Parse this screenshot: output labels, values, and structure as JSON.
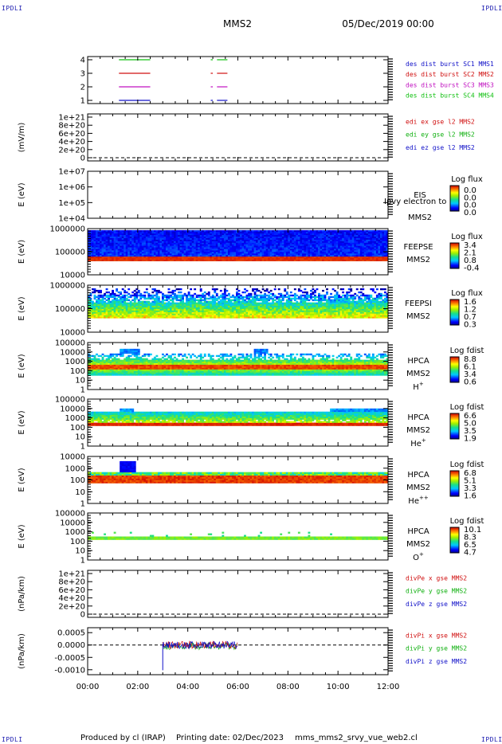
{
  "header": {
    "spacecraft": "MMS2",
    "date": "05/Dec/2019 00:00",
    "corner_left_top": "IPDLI",
    "corner_right_top": "IPDLI",
    "corner_left_bottom": "IPDLI",
    "corner_right_bottom": "IPDLI"
  },
  "footer": {
    "produced_by": "Produced by cl (IRAP)",
    "printing_date": "Printing date: 02/Dec/2023",
    "filename": "mms_mms2_srvy_vue_web2.cl"
  },
  "chart_data": [
    {
      "id": "burst",
      "type": "line",
      "ylabel": "",
      "ticks": [
        "1",
        "2",
        "3",
        "4"
      ],
      "series": [
        {
          "name": "des dist burst SC1 MMS1",
          "color": "#1010c8",
          "level": 1,
          "intervals": [
            [
              "01:15",
              "02:30"
            ],
            [
              "04:55",
              "05:00"
            ],
            [
              "05:10",
              "05:35"
            ]
          ]
        },
        {
          "name": "des dist burst SC2 MMS2",
          "color": "#d01010",
          "level": 3,
          "intervals": [
            [
              "01:15",
              "02:30"
            ],
            [
              "04:55",
              "05:00"
            ],
            [
              "05:10",
              "05:35"
            ]
          ]
        },
        {
          "name": "des dist burst SC3 MMS3",
          "color": "#c010c0",
          "level": 2,
          "intervals": [
            [
              "01:15",
              "02:30"
            ],
            [
              "04:55",
              "05:00"
            ],
            [
              "05:10",
              "05:35"
            ]
          ]
        },
        {
          "name": "des dist burst SC4 MMS4",
          "color": "#10c010",
          "level": 4,
          "intervals": [
            [
              "01:15",
              "02:30"
            ],
            [
              "04:55",
              "05:00"
            ],
            [
              "05:10",
              "05:35"
            ]
          ]
        }
      ]
    },
    {
      "id": "edi",
      "type": "line",
      "ylabel": "(mV/m)",
      "ticks": [
        "0",
        "2e+20",
        "4e+20",
        "6e+20",
        "8e+20",
        "1e+21"
      ],
      "series": [
        {
          "name": "edi ex gse l2 MMS2",
          "color": "#d01010"
        },
        {
          "name": "edi ey gse l2 MMS2",
          "color": "#10b010"
        },
        {
          "name": "edi ez gse l2 MMS2",
          "color": "#1010c8"
        }
      ]
    },
    {
      "id": "eis",
      "type": "heatmap",
      "ylabel": "E (eV)",
      "ticks": [
        "1e+04",
        "1e+05",
        "1e+06",
        "1e+07"
      ],
      "instrument": "EIS",
      "overlay_label": "Ipvy electron to",
      "sc": "MMS2",
      "species": "",
      "colorbar_title": "Log flux",
      "colorbar_ticks": [
        "0.0",
        "0.0",
        "0.0",
        "0.0"
      ]
    },
    {
      "id": "feeps_e",
      "type": "heatmap",
      "ylabel": "E (eV)",
      "ticks": [
        "10000",
        "100000",
        "1000000"
      ],
      "instrument": "FEEPSE",
      "sc": "MMS2",
      "species": "",
      "colorbar_title": "Log flux",
      "colorbar_ticks": [
        "3.4",
        "2.1",
        "0.8",
        "-0.4"
      ]
    },
    {
      "id": "feeps_i",
      "type": "heatmap",
      "ylabel": "E (eV)",
      "ticks": [
        "10000",
        "100000",
        "1000000"
      ],
      "instrument": "FEEPSI",
      "sc": "MMS2",
      "species": "",
      "colorbar_title": "Log flux",
      "colorbar_ticks": [
        "1.6",
        "1.2",
        "0.7",
        "0.3"
      ]
    },
    {
      "id": "hpca_h",
      "type": "heatmap",
      "ylabel": "E (eV)",
      "ticks": [
        "1",
        "10",
        "100",
        "1000",
        "10000",
        "100000"
      ],
      "instrument": "HPCA",
      "sc": "MMS2",
      "species": "H",
      "species_sup": "+",
      "colorbar_title": "Log fdist",
      "colorbar_ticks": [
        "8.8",
        "6.1",
        "3.4",
        "0.6"
      ]
    },
    {
      "id": "hpca_he",
      "type": "heatmap",
      "ylabel": "E (eV)",
      "ticks": [
        "1",
        "10",
        "100",
        "1000",
        "10000",
        "100000"
      ],
      "instrument": "HPCA",
      "sc": "MMS2",
      "species": "He",
      "species_sup": "+",
      "colorbar_title": "Log fdist",
      "colorbar_ticks": [
        "6.6",
        "5.0",
        "3.5",
        "1.9"
      ]
    },
    {
      "id": "hpca_hepp",
      "type": "heatmap",
      "ylabel": "E (eV)",
      "ticks": [
        "1",
        "10",
        "100",
        "1000",
        "10000"
      ],
      "instrument": "HPCA",
      "sc": "MMS2",
      "species": "He",
      "species_sup": "++",
      "colorbar_title": "Log fdist",
      "colorbar_ticks": [
        "6.8",
        "5.1",
        "3.3",
        "1.6"
      ]
    },
    {
      "id": "hpca_o",
      "type": "heatmap",
      "ylabel": "E (eV)",
      "ticks": [
        "1",
        "10",
        "100",
        "1000",
        "10000",
        "100000"
      ],
      "instrument": "HPCA",
      "sc": "MMS2",
      "species": "O",
      "species_sup": "+",
      "colorbar_title": "Log fdist",
      "colorbar_ticks": [
        "10.1",
        "8.3",
        "6.5",
        "4.7"
      ]
    },
    {
      "id": "divpe",
      "type": "line",
      "ylabel": "(nPa/km)",
      "ticks": [
        "0",
        "2e+20",
        "4e+20",
        "6e+20",
        "8e+20",
        "1e+21"
      ],
      "series": [
        {
          "name": "divPe x gse MMS2",
          "color": "#d01010"
        },
        {
          "name": "divPe y gse MMS2",
          "color": "#10b010"
        },
        {
          "name": "divPe z gse MMS2",
          "color": "#1010c8"
        }
      ]
    },
    {
      "id": "divpi",
      "type": "line",
      "ylabel": "(nPa/km)",
      "ticks": [
        "-0.0010",
        "-0.0005",
        "0.0000",
        "0.0005"
      ],
      "ylim": [
        -0.0012,
        0.0007
      ],
      "series": [
        {
          "name": "divPi x gse MMS2",
          "color": "#d01010"
        },
        {
          "name": "divPi y gse MMS2",
          "color": "#10b010"
        },
        {
          "name": "divPi z gse MMS2",
          "color": "#1010c8"
        }
      ],
      "data_interval": [
        "03:00",
        "06:00"
      ],
      "noise_amplitude": 0.00015
    }
  ],
  "time_axis": {
    "ticks": [
      "00:00",
      "02:00",
      "04:00",
      "06:00",
      "08:00",
      "10:00",
      "12:00"
    ],
    "range_hours": [
      0,
      12
    ]
  }
}
